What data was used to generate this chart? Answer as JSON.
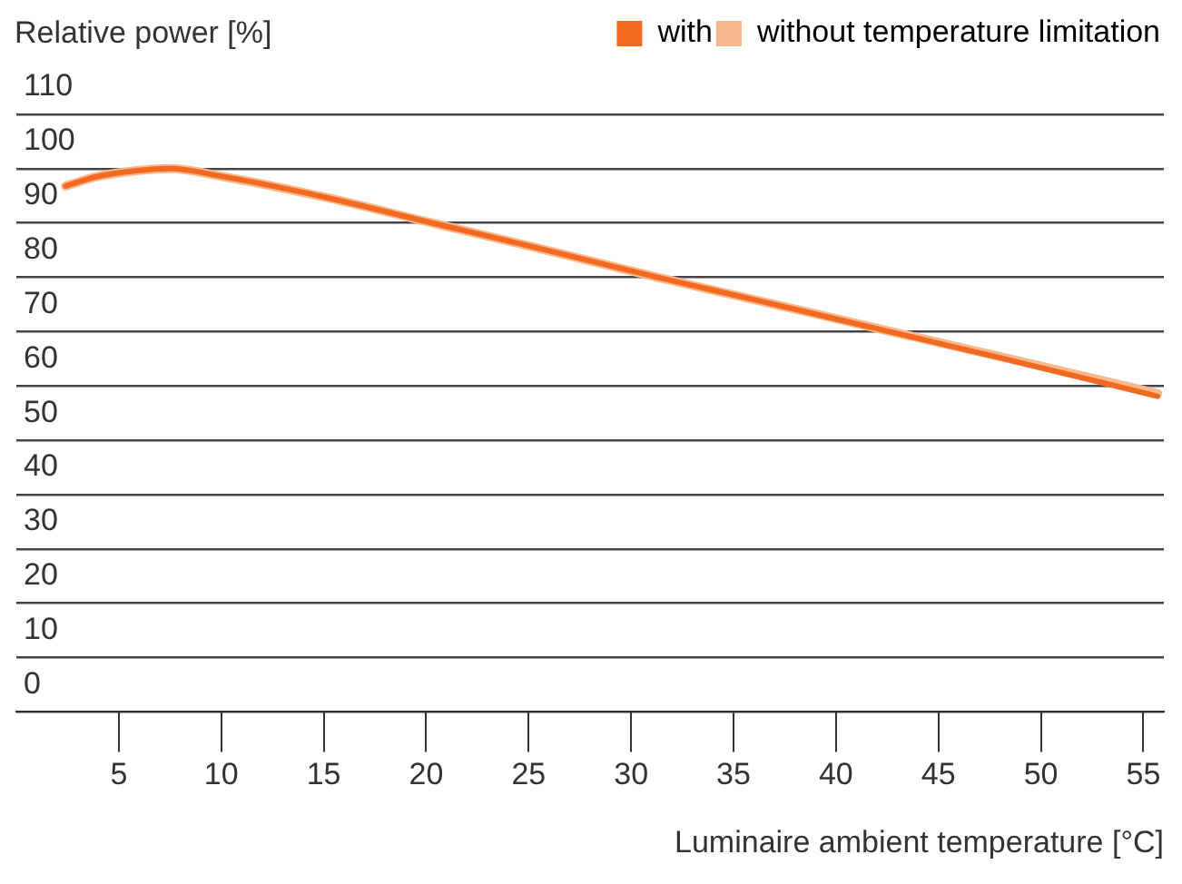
{
  "chart_data": {
    "type": "line",
    "ylabel": "Relative power [%]",
    "xlabel": "Luminaire ambient temperature [°C]",
    "xlim": [
      0,
      56
    ],
    "xticks": [
      5,
      10,
      15,
      20,
      25,
      30,
      35,
      40,
      45,
      50,
      55
    ],
    "ylim": [
      0,
      110
    ],
    "yticks": [
      0,
      10,
      20,
      30,
      40,
      50,
      60,
      70,
      80,
      90,
      100,
      110
    ],
    "grid": "y",
    "legend": "top right",
    "marker": "none",
    "line_style": "solid",
    "x": [
      2.4,
      4,
      6,
      7.5,
      10,
      15,
      20.3,
      25,
      31.3,
      36,
      42.6,
      48,
      55.7
    ],
    "series": [
      {
        "name": "with",
        "color": "#f26a21",
        "values": [
          96.8,
          98.6,
          99.7,
          100,
          98.6,
          94.8,
          90,
          85.8,
          80,
          75.9,
          70,
          65.2,
          58.1
        ]
      },
      {
        "name": "without temperature limitation",
        "color": "#f9b98d",
        "values": [
          96.8,
          98.6,
          99.7,
          100,
          98.6,
          94.8,
          90,
          85.8,
          80,
          75.9,
          70.1,
          65.4,
          58.6
        ]
      }
    ]
  }
}
